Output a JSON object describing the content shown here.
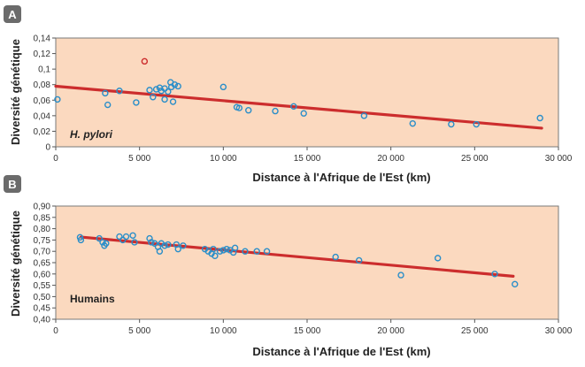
{
  "y_axis_title": "Diversité génétique",
  "x_axis_title": "Distance à l'Afrique de l'Est (km)",
  "chart_data": [
    {
      "type": "scatter",
      "panel_letter": "A",
      "label": "H. pylori",
      "label_italic": true,
      "xlabel": "Distance à l'Afrique de l'Est (km)",
      "ylabel": "Diversité génétique",
      "xlim": [
        0,
        30000
      ],
      "ylim": [
        0,
        0.14
      ],
      "xticks": [
        0,
        5000,
        10000,
        15000,
        20000,
        25000,
        30000
      ],
      "xtick_labels": [
        "0",
        "5 000",
        "10 000",
        "15 000",
        "20 000",
        "25 000",
        "30 000"
      ],
      "yticks": [
        0,
        0.02,
        0.04,
        0.06,
        0.08,
        0.1,
        0.12,
        0.14
      ],
      "ytick_labels": [
        "0",
        "0,02",
        "0,04",
        "0,06",
        "0,08",
        "0,1",
        "0,12",
        "0,14"
      ],
      "grid": false,
      "point_color": "#2a8ec9",
      "outlier_color": "#cc2d2d",
      "trend_color": "#cc2d2d",
      "trend": {
        "x": [
          0,
          29000
        ],
        "y": [
          0.078,
          0.024
        ]
      },
      "points": [
        {
          "x": 100,
          "y": 0.061
        },
        {
          "x": 2950,
          "y": 0.069
        },
        {
          "x": 3100,
          "y": 0.054
        },
        {
          "x": 3800,
          "y": 0.072
        },
        {
          "x": 4800,
          "y": 0.057
        },
        {
          "x": 5300,
          "y": 0.11,
          "outlier": true
        },
        {
          "x": 5600,
          "y": 0.073
        },
        {
          "x": 5800,
          "y": 0.064
        },
        {
          "x": 6000,
          "y": 0.074
        },
        {
          "x": 6200,
          "y": 0.076
        },
        {
          "x": 6300,
          "y": 0.072
        },
        {
          "x": 6500,
          "y": 0.075
        },
        {
          "x": 6500,
          "y": 0.061
        },
        {
          "x": 6700,
          "y": 0.071
        },
        {
          "x": 6850,
          "y": 0.083
        },
        {
          "x": 6900,
          "y": 0.077
        },
        {
          "x": 7000,
          "y": 0.058
        },
        {
          "x": 7100,
          "y": 0.08
        },
        {
          "x": 7300,
          "y": 0.078
        },
        {
          "x": 10000,
          "y": 0.077
        },
        {
          "x": 10800,
          "y": 0.051
        },
        {
          "x": 10950,
          "y": 0.05
        },
        {
          "x": 11500,
          "y": 0.047
        },
        {
          "x": 13100,
          "y": 0.046
        },
        {
          "x": 14200,
          "y": 0.052
        },
        {
          "x": 14800,
          "y": 0.043
        },
        {
          "x": 18400,
          "y": 0.04
        },
        {
          "x": 21300,
          "y": 0.03
        },
        {
          "x": 23600,
          "y": 0.029
        },
        {
          "x": 25100,
          "y": 0.029
        },
        {
          "x": 28900,
          "y": 0.037
        }
      ]
    },
    {
      "type": "scatter",
      "panel_letter": "B",
      "label": "Humains",
      "label_italic": false,
      "xlabel": "Distance à l'Afrique de l'Est (km)",
      "ylabel": "Diversité génétique",
      "xlim": [
        0,
        30000
      ],
      "ylim": [
        0.4,
        0.9
      ],
      "xticks": [
        0,
        5000,
        10000,
        15000,
        20000,
        25000,
        30000
      ],
      "xtick_labels": [
        "0",
        "5 000",
        "10 000",
        "15 000",
        "20 000",
        "25 000",
        "30 000"
      ],
      "yticks": [
        0.4,
        0.45,
        0.5,
        0.55,
        0.6,
        0.65,
        0.7,
        0.75,
        0.8,
        0.85,
        0.9
      ],
      "ytick_labels": [
        "0,40",
        "0,45",
        "0,50",
        "0,55",
        "0,60",
        "0,65",
        "0,70",
        "0,75",
        "0,80",
        "0,85",
        "0,90"
      ],
      "grid": false,
      "point_color": "#2a8ec9",
      "trend_color": "#cc2d2d",
      "trend": {
        "x": [
          1500,
          27300
        ],
        "y": [
          0.763,
          0.59
        ]
      },
      "points": [
        {
          "x": 1450,
          "y": 0.762
        },
        {
          "x": 1500,
          "y": 0.75
        },
        {
          "x": 2600,
          "y": 0.757
        },
        {
          "x": 2800,
          "y": 0.74
        },
        {
          "x": 2900,
          "y": 0.725
        },
        {
          "x": 3000,
          "y": 0.735
        },
        {
          "x": 3800,
          "y": 0.765
        },
        {
          "x": 4000,
          "y": 0.75
        },
        {
          "x": 4200,
          "y": 0.765
        },
        {
          "x": 4600,
          "y": 0.77
        },
        {
          "x": 4700,
          "y": 0.74
        },
        {
          "x": 5600,
          "y": 0.757
        },
        {
          "x": 5700,
          "y": 0.74
        },
        {
          "x": 5900,
          "y": 0.735
        },
        {
          "x": 6100,
          "y": 0.72
        },
        {
          "x": 6200,
          "y": 0.7
        },
        {
          "x": 6300,
          "y": 0.735
        },
        {
          "x": 6500,
          "y": 0.725
        },
        {
          "x": 6700,
          "y": 0.73
        },
        {
          "x": 7200,
          "y": 0.73
        },
        {
          "x": 7300,
          "y": 0.71
        },
        {
          "x": 7600,
          "y": 0.725
        },
        {
          "x": 8900,
          "y": 0.71
        },
        {
          "x": 9100,
          "y": 0.7
        },
        {
          "x": 9300,
          "y": 0.69
        },
        {
          "x": 9400,
          "y": 0.71
        },
        {
          "x": 9500,
          "y": 0.68
        },
        {
          "x": 9800,
          "y": 0.7
        },
        {
          "x": 10000,
          "y": 0.705
        },
        {
          "x": 10200,
          "y": 0.71
        },
        {
          "x": 10400,
          "y": 0.705
        },
        {
          "x": 10600,
          "y": 0.695
        },
        {
          "x": 10700,
          "y": 0.715
        },
        {
          "x": 11300,
          "y": 0.7
        },
        {
          "x": 12000,
          "y": 0.7
        },
        {
          "x": 12600,
          "y": 0.7
        },
        {
          "x": 16700,
          "y": 0.675
        },
        {
          "x": 18100,
          "y": 0.66
        },
        {
          "x": 20600,
          "y": 0.595
        },
        {
          "x": 22800,
          "y": 0.67
        },
        {
          "x": 26200,
          "y": 0.6
        },
        {
          "x": 27400,
          "y": 0.555
        }
      ]
    }
  ]
}
